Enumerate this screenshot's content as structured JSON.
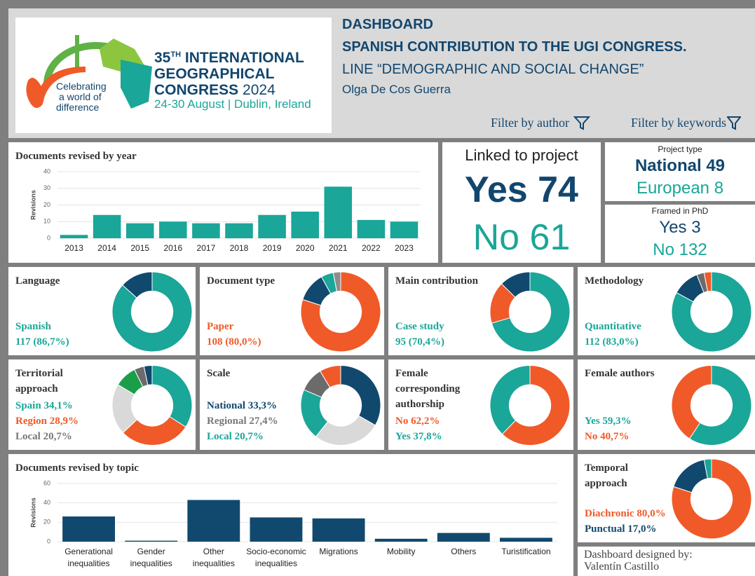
{
  "header": {
    "logo": {
      "number": "35",
      "sup": "TH",
      "line1": "INTERNATIONAL",
      "line2": "GEOGRAPHICAL",
      "line3_word": "CONGRESS",
      "line3_year": "2024",
      "dates": "24-30 August | Dublin, Ireland",
      "slogan": [
        "Celebrating",
        "a world of",
        "difference"
      ]
    },
    "title": "DASHBOARD",
    "subtitle": "SPANISH CONTRIBUTION TO THE UGI CONGRESS.",
    "line": "LINE “DEMOGRAPHIC AND SOCIAL CHANGE”",
    "author": "Olga De Cos Guerra"
  },
  "filters": [
    "Filter by author",
    "Filter by keywords"
  ],
  "linked_project": {
    "title": "Linked to project",
    "yes": "Yes 74",
    "no": "No 61"
  },
  "project_type": {
    "title": "Project type",
    "national": "National 49",
    "european": "European 8"
  },
  "phd": {
    "title": "Framed in PhD",
    "yes": "Yes 3",
    "no": "No 132"
  },
  "footer": [
    "Dashboard designed by:",
    "Valentín Castillo"
  ],
  "chart_data": [
    {
      "type": "bar",
      "title": "Documents revised by year",
      "y_label": "Revisions",
      "categories": [
        "2013",
        "2014",
        "2015",
        "2016",
        "2017",
        "2018",
        "2019",
        "2020",
        "2021",
        "2022",
        "2023"
      ],
      "values": [
        2,
        14,
        9,
        10,
        9,
        9,
        14,
        16,
        31,
        11,
        10
      ],
      "color": "#1aa698",
      "ylim": [
        0,
        40
      ],
      "yticks": [
        0,
        10,
        20,
        30,
        40
      ],
      "grid": true
    },
    {
      "type": "bar",
      "title": "Documents revised by topic",
      "y_label": "Revisions",
      "categories": [
        "Generational inequalities",
        "Gender inequalities",
        "Other inequalities",
        "Socio-economic inequalities",
        "Migrations",
        "Mobility",
        "Others",
        "Turistification"
      ],
      "values": [
        26,
        1,
        43,
        25,
        24,
        3,
        9,
        4
      ],
      "color": "#11496e",
      "ylim": [
        0,
        60
      ],
      "yticks": [
        0,
        20,
        40,
        60
      ],
      "grid": true
    },
    {
      "type": "donut",
      "title": "Language",
      "categories": [
        "Spanish",
        null
      ],
      "values": [
        86.7,
        13.3
      ],
      "value_labels": [
        "117 (86,7%)",
        null
      ],
      "colors": [
        "#1aa698",
        "#11496e"
      ]
    },
    {
      "type": "donut",
      "title": "Document type",
      "categories": [
        "Paper",
        null,
        null,
        null
      ],
      "values": [
        80.0,
        12,
        5,
        3
      ],
      "value_labels": [
        "108 (80,0%)",
        null,
        null,
        null
      ],
      "colors": [
        "#f05a28",
        "#11496e",
        "#1aa698",
        "#8c8c8c"
      ]
    },
    {
      "type": "donut",
      "title": "Main contribution",
      "categories": [
        "Case study",
        null,
        null
      ],
      "values": [
        70.4,
        17,
        12.6
      ],
      "value_labels": [
        "95 (70,4%)",
        null,
        null
      ],
      "colors": [
        "#1aa698",
        "#f05a28",
        "#11496e"
      ]
    },
    {
      "type": "donut",
      "title": "Methodology",
      "categories": [
        "Quantitative",
        null,
        null,
        null
      ],
      "values": [
        83.0,
        11,
        3,
        3
      ],
      "value_labels": [
        "112 (83,0%)",
        null,
        null,
        null
      ],
      "colors": [
        "#1aa698",
        "#11496e",
        "#6b6b6b",
        "#f05a28"
      ]
    },
    {
      "type": "donut",
      "title": "Territorial approach",
      "categories": [
        "Spain",
        "Region",
        "Local",
        null,
        null,
        null
      ],
      "values": [
        34.1,
        28.9,
        20.7,
        9,
        4,
        3.3
      ],
      "value_labels": [
        "34,1%",
        "28,9%",
        "20,7%",
        null,
        null,
        null
      ],
      "colors": [
        "#1aa698",
        "#f05a28",
        "#d9d9d9",
        "#1b9e4a",
        "#6b6b6b",
        "#11496e"
      ]
    },
    {
      "type": "donut",
      "title": "Scale",
      "categories": [
        "National",
        "Regional",
        "Local",
        null,
        null
      ],
      "values": [
        33.3,
        27.4,
        20.7,
        10,
        8.6
      ],
      "value_labels": [
        "33,3%",
        "27,4%",
        "20,7%",
        null,
        null
      ],
      "colors": [
        "#11496e",
        "#d9d9d9",
        "#1aa698",
        "#6b6b6b",
        "#f05a28"
      ]
    },
    {
      "type": "donut",
      "title": "Female corresponding authorship",
      "categories": [
        "No",
        "Yes"
      ],
      "values": [
        62.2,
        37.8
      ],
      "value_labels": [
        "62,2%",
        "37,8%"
      ],
      "colors": [
        "#f05a28",
        "#1aa698"
      ]
    },
    {
      "type": "donut",
      "title": "Female authors",
      "categories": [
        "Yes",
        "No"
      ],
      "values": [
        59.3,
        40.7
      ],
      "value_labels": [
        "59,3%",
        "40,7%"
      ],
      "colors": [
        "#1aa698",
        "#f05a28"
      ]
    },
    {
      "type": "donut",
      "title": "Temporal approach",
      "categories": [
        "Diachronic",
        "Punctual",
        null
      ],
      "values": [
        80.0,
        17.0,
        3.0
      ],
      "value_labels": [
        "80,0%",
        "17,0%",
        null
      ],
      "colors": [
        "#f05a28",
        "#11496e",
        "#1aa698"
      ]
    }
  ]
}
